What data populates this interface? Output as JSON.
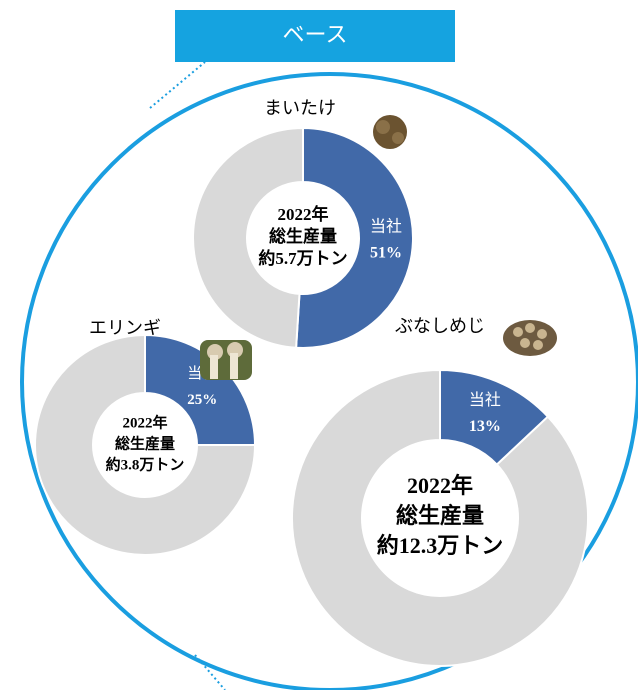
{
  "header": {
    "title": "ベース"
  },
  "chart_data": [
    {
      "type": "pie",
      "title": "まいたけ",
      "center_text": [
        "2022年",
        "総生産量",
        "約5.7万トン"
      ],
      "categories": [
        "当社",
        null
      ],
      "values": [
        51,
        49
      ],
      "value_labels": [
        "51%",
        null
      ],
      "colors": [
        "#4169a8",
        "#d9d9d9"
      ]
    },
    {
      "type": "pie",
      "title": "エリンギ",
      "center_text": [
        "2022年",
        "総生産量",
        "約3.8万トン"
      ],
      "categories": [
        "当社",
        null
      ],
      "values": [
        25,
        75
      ],
      "value_labels": [
        "25%",
        null
      ],
      "colors": [
        "#4169a8",
        "#d9d9d9"
      ]
    },
    {
      "type": "pie",
      "title": "ぶなしめじ",
      "center_text": [
        "2022年",
        "総生産量",
        "約12.3万トン"
      ],
      "categories": [
        "当社",
        null
      ],
      "values": [
        13,
        87
      ],
      "value_labels": [
        "13%",
        null
      ],
      "colors": [
        "#4169a8",
        "#d9d9d9"
      ]
    }
  ]
}
